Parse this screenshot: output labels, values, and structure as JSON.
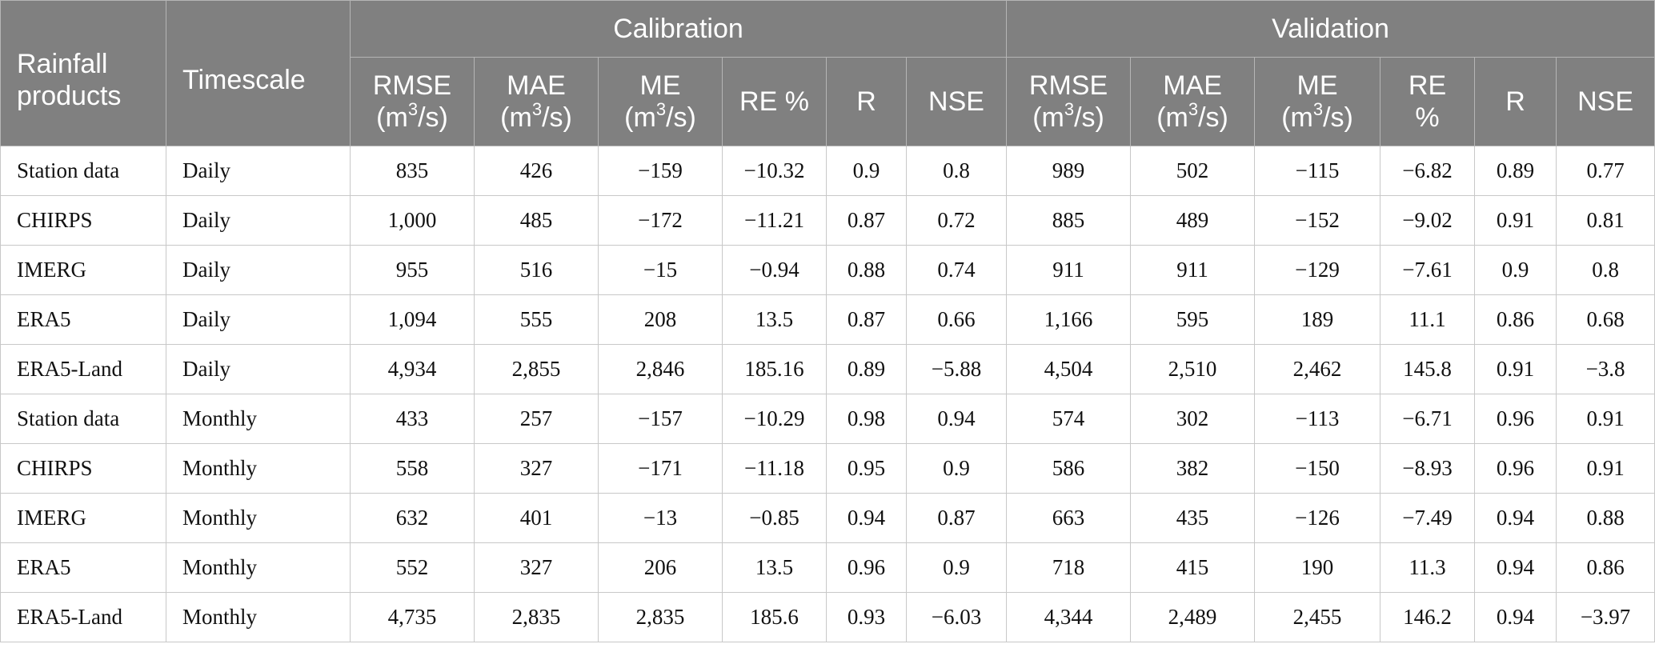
{
  "table": {
    "headers": {
      "product": "Rainfall products",
      "timescale": "Timescale",
      "calibration": "Calibration",
      "validation": "Validation",
      "metrics": [
        {
          "name": "RMSE",
          "unit_pre": "(m",
          "unit_sup": "3",
          "unit_post": "/s)"
        },
        {
          "name": "MAE",
          "unit_pre": "(m",
          "unit_sup": "3",
          "unit_post": "/s)"
        },
        {
          "name": "ME",
          "unit_pre": "(m",
          "unit_sup": "3",
          "unit_post": "/s)"
        },
        {
          "name": "RE %"
        },
        {
          "name": "R"
        },
        {
          "name": "NSE"
        },
        {
          "name": "RMSE",
          "unit_pre": "(m",
          "unit_sup": "3",
          "unit_post": "/s)"
        },
        {
          "name": "MAE",
          "unit_pre": "(m",
          "unit_sup": "3",
          "unit_post": "/s)"
        },
        {
          "name": "ME",
          "unit_pre": "(m",
          "unit_sup": "3",
          "unit_post": "/s)"
        },
        {
          "name": "RE",
          "name2": "%"
        },
        {
          "name": "R"
        },
        {
          "name": "NSE"
        }
      ]
    },
    "rows": [
      [
        "Station data",
        "Daily",
        "835",
        "426",
        "−159",
        "−10.32",
        "0.9",
        "0.8",
        "989",
        "502",
        "−115",
        "−6.82",
        "0.89",
        "0.77"
      ],
      [
        "CHIRPS",
        "Daily",
        "1,000",
        "485",
        "−172",
        "−11.21",
        "0.87",
        "0.72",
        "885",
        "489",
        "−152",
        "−9.02",
        "0.91",
        "0.81"
      ],
      [
        "IMERG",
        "Daily",
        "955",
        "516",
        "−15",
        "−0.94",
        "0.88",
        "0.74",
        "911",
        "911",
        "−129",
        "−7.61",
        "0.9",
        "0.8"
      ],
      [
        "ERA5",
        "Daily",
        "1,094",
        "555",
        "208",
        "13.5",
        "0.87",
        "0.66",
        "1,166",
        "595",
        "189",
        "11.1",
        "0.86",
        "0.68"
      ],
      [
        "ERA5-Land",
        "Daily",
        "4,934",
        "2,855",
        "2,846",
        "185.16",
        "0.89",
        "−5.88",
        "4,504",
        "2,510",
        "2,462",
        "145.8",
        "0.91",
        "−3.8"
      ],
      [
        "Station data",
        "Monthly",
        "433",
        "257",
        "−157",
        "−10.29",
        "0.98",
        "0.94",
        "574",
        "302",
        "−113",
        "−6.71",
        "0.96",
        "0.91"
      ],
      [
        "CHIRPS",
        "Monthly",
        "558",
        "327",
        "−171",
        "−11.18",
        "0.95",
        "0.9",
        "586",
        "382",
        "−150",
        "−8.93",
        "0.96",
        "0.91"
      ],
      [
        "IMERG",
        "Monthly",
        "632",
        "401",
        "−13",
        "−0.85",
        "0.94",
        "0.87",
        "663",
        "435",
        "−126",
        "−7.49",
        "0.94",
        "0.88"
      ],
      [
        "ERA5",
        "Monthly",
        "552",
        "327",
        "206",
        "13.5",
        "0.96",
        "0.9",
        "718",
        "415",
        "190",
        "11.3",
        "0.94",
        "0.86"
      ],
      [
        "ERA5-Land",
        "Monthly",
        "4,735",
        "2,835",
        "2,835",
        "185.6",
        "0.93",
        "−6.03",
        "4,344",
        "2,489",
        "2,455",
        "146.2",
        "0.94",
        "−3.97"
      ]
    ]
  }
}
